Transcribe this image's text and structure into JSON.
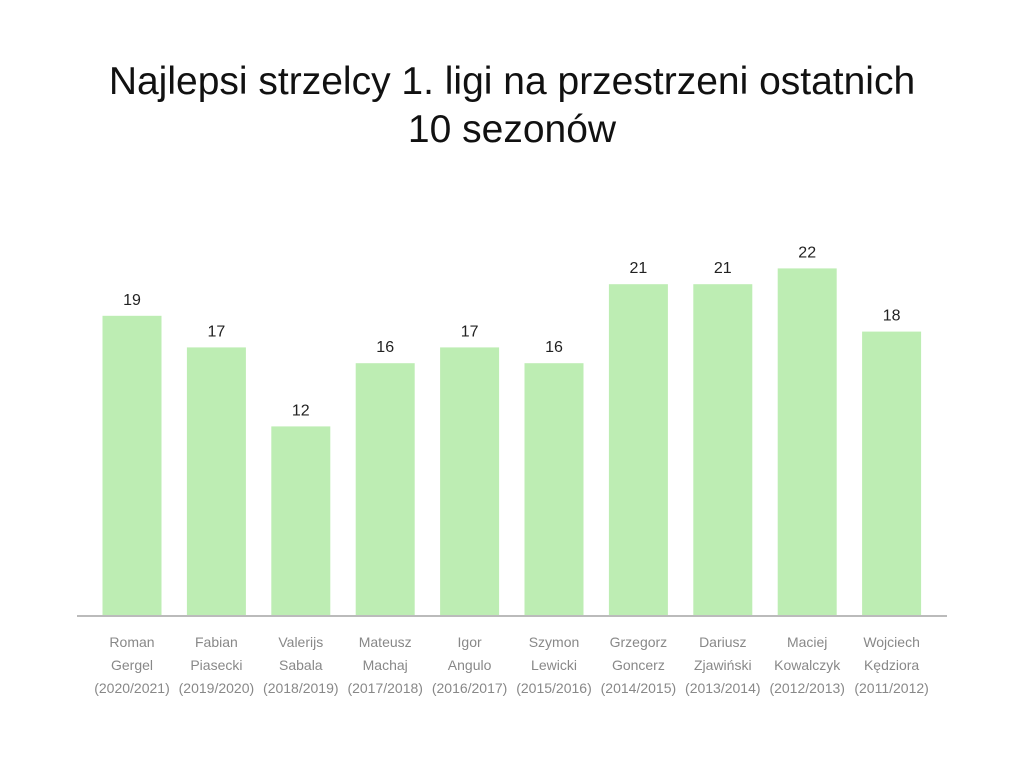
{
  "chart_data": {
    "type": "bar",
    "title_lines": [
      "Najlepsi strzelcy 1. ligi na przestrzeni ostatnich",
      "10 sezonów"
    ],
    "categories": [
      [
        "Roman",
        "Gergel",
        "(2020/2021)"
      ],
      [
        "Fabian",
        "Piasecki",
        "(2019/2020)"
      ],
      [
        "Valerijs",
        "Sabala",
        "(2018/2019)"
      ],
      [
        "Mateusz",
        "Machaj",
        "(2017/2018)"
      ],
      [
        "Igor",
        "Angulo",
        "(2016/2017)"
      ],
      [
        "Szymon",
        "Lewicki",
        "(2015/2016)"
      ],
      [
        "Grzegorz",
        "Goncerz",
        "(2014/2015)"
      ],
      [
        "Dariusz",
        "Zjawiński",
        "(2013/2014)"
      ],
      [
        "Maciej",
        "Kowalczyk",
        "(2012/2013)"
      ],
      [
        "Wojciech",
        "Kędziora",
        "(2011/2012)"
      ]
    ],
    "values": [
      19,
      17,
      12,
      16,
      17,
      16,
      21,
      21,
      22,
      18
    ],
    "ylim": [
      0,
      24
    ],
    "grid": false,
    "legend": "none",
    "colors": {
      "bar": "#bdedb3",
      "baseline": "#bbbbbb"
    }
  }
}
